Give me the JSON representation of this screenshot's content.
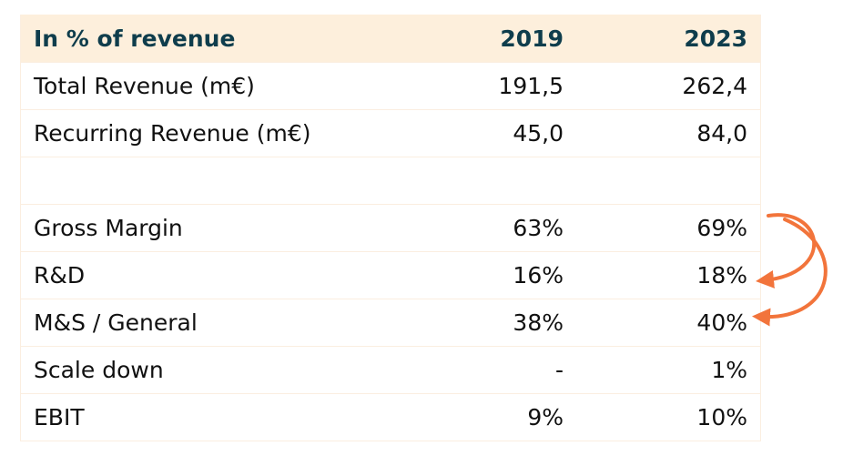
{
  "table": {
    "header": {
      "label": "In % of revenue",
      "col1": "2019",
      "col2": "2023"
    },
    "rows": [
      {
        "label": "Total Revenue (m€)",
        "v2019": "191,5",
        "v2023": "262,4"
      },
      {
        "label": "Recurring Revenue (m€)",
        "v2019": "45,0",
        "v2023": "84,0"
      },
      {
        "label": "",
        "v2019": "",
        "v2023": ""
      },
      {
        "label": "Gross Margin",
        "v2019": "63%",
        "v2023": "69%"
      },
      {
        "label": "R&D",
        "v2019": "16%",
        "v2023": "18%"
      },
      {
        "label": "M&S / General",
        "v2019": "38%",
        "v2023": "40%"
      },
      {
        "label": "Scale down",
        "v2019": "-",
        "v2023": "1%"
      },
      {
        "label": "EBIT",
        "v2019": "9%",
        "v2023": "10%"
      }
    ]
  },
  "colors": {
    "header_bg": "#fdefdc",
    "header_text": "#0f3d4c",
    "arrow": "#f2743b"
  },
  "icons": {
    "arrow_to_rd": "curved-arrow-icon",
    "arrow_to_ms": "curved-arrow-icon"
  }
}
